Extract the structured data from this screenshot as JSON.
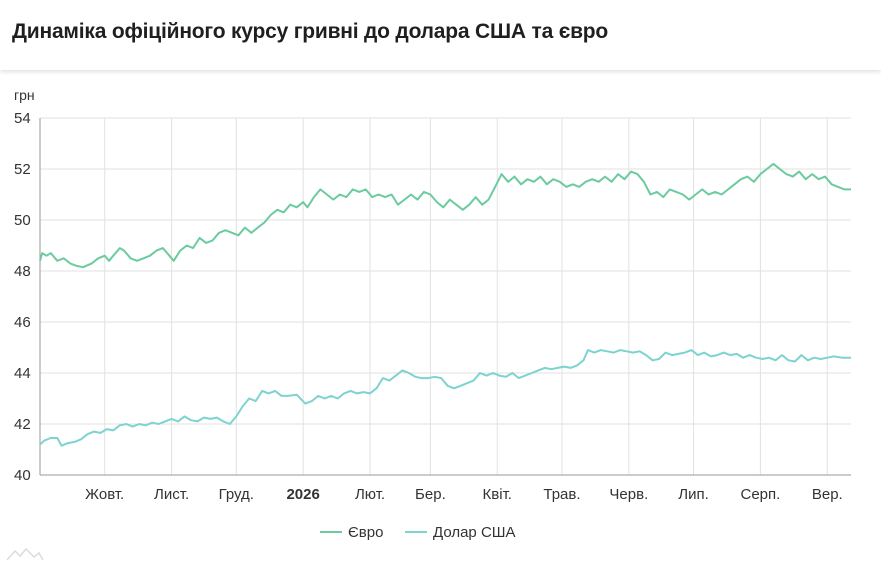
{
  "title": "Динаміка офіційного курсу гривні до долара США та євро",
  "colors": {
    "euro": "#6ccb9e",
    "usd": "#7dd3cf",
    "grid": "#e2e2e2",
    "axis": "#999999"
  },
  "chart_data": {
    "type": "line",
    "title": "Динаміка офіційного курсу гривні до долара США та євро",
    "ylabel": "грн",
    "ylim": [
      40,
      54
    ],
    "yticks": [
      "40",
      "42",
      "44",
      "46",
      "48",
      "50",
      "52",
      "54"
    ],
    "xlim": [
      "2025-09-01",
      "2026-09-12"
    ],
    "grid": true,
    "legend_position": "bottom",
    "x_ticks": [
      {
        "label": "Жовт.",
        "date": "2025-10-01",
        "bold": false
      },
      {
        "label": "Лист.",
        "date": "2025-11-01",
        "bold": false
      },
      {
        "label": "Груд.",
        "date": "2025-12-01",
        "bold": false
      },
      {
        "label": "2026",
        "date": "2026-01-01",
        "bold": true
      },
      {
        "label": "Лют.",
        "date": "2026-02-01",
        "bold": false
      },
      {
        "label": "Бер.",
        "date": "2026-03-01",
        "bold": false
      },
      {
        "label": "Квіт.",
        "date": "2026-04-01",
        "bold": false
      },
      {
        "label": "Трав.",
        "date": "2026-05-01",
        "bold": false
      },
      {
        "label": "Черв.",
        "date": "2026-06-01",
        "bold": false
      },
      {
        "label": "Лип.",
        "date": "2026-07-01",
        "bold": false
      },
      {
        "label": "Серп.",
        "date": "2026-08-01",
        "bold": false
      },
      {
        "label": "Вер.",
        "date": "2026-09-01",
        "bold": false
      }
    ],
    "series": [
      {
        "name": "Євро",
        "color": "#6ccb9e",
        "points": [
          [
            "2025-09-01",
            48.4
          ],
          [
            "2025-09-02",
            48.7
          ],
          [
            "2025-09-04",
            48.6
          ],
          [
            "2025-09-06",
            48.7
          ],
          [
            "2025-09-09",
            48.4
          ],
          [
            "2025-09-12",
            48.5
          ],
          [
            "2025-09-15",
            48.3
          ],
          [
            "2025-09-18",
            48.2
          ],
          [
            "2025-09-21",
            48.15
          ],
          [
            "2025-09-25",
            48.3
          ],
          [
            "2025-09-28",
            48.5
          ],
          [
            "2025-10-01",
            48.6
          ],
          [
            "2025-10-03",
            48.4
          ],
          [
            "2025-10-05",
            48.6
          ],
          [
            "2025-10-08",
            48.9
          ],
          [
            "2025-10-10",
            48.8
          ],
          [
            "2025-10-13",
            48.5
          ],
          [
            "2025-10-16",
            48.4
          ],
          [
            "2025-10-19",
            48.5
          ],
          [
            "2025-10-22",
            48.6
          ],
          [
            "2025-10-25",
            48.8
          ],
          [
            "2025-10-28",
            48.9
          ],
          [
            "2025-10-31",
            48.6
          ],
          [
            "2025-11-02",
            48.4
          ],
          [
            "2025-11-05",
            48.8
          ],
          [
            "2025-11-08",
            49.0
          ],
          [
            "2025-11-11",
            48.9
          ],
          [
            "2025-11-14",
            49.3
          ],
          [
            "2025-11-17",
            49.1
          ],
          [
            "2025-11-20",
            49.2
          ],
          [
            "2025-11-23",
            49.5
          ],
          [
            "2025-11-26",
            49.6
          ],
          [
            "2025-11-29",
            49.5
          ],
          [
            "2025-12-02",
            49.4
          ],
          [
            "2025-12-05",
            49.7
          ],
          [
            "2025-12-08",
            49.5
          ],
          [
            "2025-12-11",
            49.7
          ],
          [
            "2025-12-14",
            49.9
          ],
          [
            "2025-12-17",
            50.2
          ],
          [
            "2025-12-20",
            50.4
          ],
          [
            "2025-12-23",
            50.3
          ],
          [
            "2025-12-26",
            50.6
          ],
          [
            "2025-12-29",
            50.5
          ],
          [
            "2026-01-01",
            50.7
          ],
          [
            "2026-01-03",
            50.5
          ],
          [
            "2026-01-06",
            50.9
          ],
          [
            "2026-01-09",
            51.2
          ],
          [
            "2026-01-12",
            51.0
          ],
          [
            "2026-01-15",
            50.8
          ],
          [
            "2026-01-18",
            51.0
          ],
          [
            "2026-01-21",
            50.9
          ],
          [
            "2026-01-24",
            51.2
          ],
          [
            "2026-01-27",
            51.1
          ],
          [
            "2026-01-30",
            51.2
          ],
          [
            "2026-02-02",
            50.9
          ],
          [
            "2026-02-05",
            51.0
          ],
          [
            "2026-02-08",
            50.9
          ],
          [
            "2026-02-11",
            51.0
          ],
          [
            "2026-02-14",
            50.6
          ],
          [
            "2026-02-17",
            50.8
          ],
          [
            "2026-02-20",
            51.0
          ],
          [
            "2026-02-23",
            50.8
          ],
          [
            "2026-02-26",
            51.1
          ],
          [
            "2026-03-01",
            51.0
          ],
          [
            "2026-03-04",
            50.7
          ],
          [
            "2026-03-07",
            50.5
          ],
          [
            "2026-03-10",
            50.8
          ],
          [
            "2026-03-13",
            50.6
          ],
          [
            "2026-03-16",
            50.4
          ],
          [
            "2026-03-19",
            50.6
          ],
          [
            "2026-03-22",
            50.9
          ],
          [
            "2026-03-25",
            50.6
          ],
          [
            "2026-03-28",
            50.8
          ],
          [
            "2026-03-31",
            51.3
          ],
          [
            "2026-04-03",
            51.8
          ],
          [
            "2026-04-06",
            51.5
          ],
          [
            "2026-04-09",
            51.7
          ],
          [
            "2026-04-12",
            51.4
          ],
          [
            "2026-04-15",
            51.6
          ],
          [
            "2026-04-18",
            51.5
          ],
          [
            "2026-04-21",
            51.7
          ],
          [
            "2026-04-24",
            51.4
          ],
          [
            "2026-04-27",
            51.6
          ],
          [
            "2026-04-30",
            51.5
          ],
          [
            "2026-05-03",
            51.3
          ],
          [
            "2026-05-06",
            51.4
          ],
          [
            "2026-05-09",
            51.3
          ],
          [
            "2026-05-12",
            51.5
          ],
          [
            "2026-05-15",
            51.6
          ],
          [
            "2026-05-18",
            51.5
          ],
          [
            "2026-05-21",
            51.7
          ],
          [
            "2026-05-24",
            51.5
          ],
          [
            "2026-05-27",
            51.8
          ],
          [
            "2026-05-30",
            51.6
          ],
          [
            "2026-06-02",
            51.9
          ],
          [
            "2026-06-05",
            51.8
          ],
          [
            "2026-06-08",
            51.5
          ],
          [
            "2026-06-11",
            51.0
          ],
          [
            "2026-06-14",
            51.1
          ],
          [
            "2026-06-17",
            50.9
          ],
          [
            "2026-06-20",
            51.2
          ],
          [
            "2026-06-23",
            51.1
          ],
          [
            "2026-06-26",
            51.0
          ],
          [
            "2026-06-29",
            50.8
          ],
          [
            "2026-07-02",
            51.0
          ],
          [
            "2026-07-05",
            51.2
          ],
          [
            "2026-07-08",
            51.0
          ],
          [
            "2026-07-11",
            51.1
          ],
          [
            "2026-07-14",
            51.0
          ],
          [
            "2026-07-17",
            51.2
          ],
          [
            "2026-07-20",
            51.4
          ],
          [
            "2026-07-23",
            51.6
          ],
          [
            "2026-07-26",
            51.7
          ],
          [
            "2026-07-29",
            51.5
          ],
          [
            "2026-08-01",
            51.8
          ],
          [
            "2026-08-04",
            52.0
          ],
          [
            "2026-08-07",
            52.2
          ],
          [
            "2026-08-10",
            52.0
          ],
          [
            "2026-08-13",
            51.8
          ],
          [
            "2026-08-16",
            51.7
          ],
          [
            "2026-08-19",
            51.9
          ],
          [
            "2026-08-22",
            51.6
          ],
          [
            "2026-08-25",
            51.8
          ],
          [
            "2026-08-28",
            51.6
          ],
          [
            "2026-08-31",
            51.7
          ],
          [
            "2026-09-03",
            51.4
          ],
          [
            "2026-09-06",
            51.3
          ],
          [
            "2026-09-09",
            51.2
          ],
          [
            "2026-09-12",
            51.2
          ]
        ]
      },
      {
        "name": "Долар США",
        "color": "#7dd3cf",
        "points": [
          [
            "2025-09-01",
            41.2
          ],
          [
            "2025-09-03",
            41.35
          ],
          [
            "2025-09-06",
            41.45
          ],
          [
            "2025-09-09",
            41.45
          ],
          [
            "2025-09-11",
            41.15
          ],
          [
            "2025-09-14",
            41.25
          ],
          [
            "2025-09-17",
            41.3
          ],
          [
            "2025-09-20",
            41.4
          ],
          [
            "2025-09-23",
            41.6
          ],
          [
            "2025-09-26",
            41.7
          ],
          [
            "2025-09-29",
            41.65
          ],
          [
            "2025-10-02",
            41.8
          ],
          [
            "2025-10-05",
            41.75
          ],
          [
            "2025-10-08",
            41.95
          ],
          [
            "2025-10-11",
            42.0
          ],
          [
            "2025-10-14",
            41.9
          ],
          [
            "2025-10-17",
            42.0
          ],
          [
            "2025-10-20",
            41.95
          ],
          [
            "2025-10-23",
            42.05
          ],
          [
            "2025-10-26",
            42.0
          ],
          [
            "2025-10-29",
            42.1
          ],
          [
            "2025-11-01",
            42.2
          ],
          [
            "2025-11-04",
            42.1
          ],
          [
            "2025-11-07",
            42.3
          ],
          [
            "2025-11-10",
            42.15
          ],
          [
            "2025-11-13",
            42.1
          ],
          [
            "2025-11-16",
            42.25
          ],
          [
            "2025-11-19",
            42.2
          ],
          [
            "2025-11-22",
            42.25
          ],
          [
            "2025-11-25",
            42.1
          ],
          [
            "2025-11-28",
            42.0
          ],
          [
            "2025-12-01",
            42.3
          ],
          [
            "2025-12-04",
            42.7
          ],
          [
            "2025-12-07",
            43.0
          ],
          [
            "2025-12-10",
            42.9
          ],
          [
            "2025-12-13",
            43.3
          ],
          [
            "2025-12-16",
            43.2
          ],
          [
            "2025-12-19",
            43.3
          ],
          [
            "2025-12-22",
            43.1
          ],
          [
            "2025-12-25",
            43.1
          ],
          [
            "2025-12-29",
            43.15
          ],
          [
            "2026-01-02",
            42.8
          ],
          [
            "2026-01-05",
            42.9
          ],
          [
            "2026-01-08",
            43.1
          ],
          [
            "2026-01-11",
            43.0
          ],
          [
            "2026-01-14",
            43.1
          ],
          [
            "2026-01-17",
            43.0
          ],
          [
            "2026-01-20",
            43.2
          ],
          [
            "2026-01-23",
            43.3
          ],
          [
            "2026-01-26",
            43.2
          ],
          [
            "2026-01-29",
            43.25
          ],
          [
            "2026-02-01",
            43.2
          ],
          [
            "2026-02-04",
            43.4
          ],
          [
            "2026-02-07",
            43.8
          ],
          [
            "2026-02-10",
            43.7
          ],
          [
            "2026-02-13",
            43.9
          ],
          [
            "2026-02-16",
            44.1
          ],
          [
            "2026-02-19",
            44.0
          ],
          [
            "2026-02-22",
            43.85
          ],
          [
            "2026-02-25",
            43.8
          ],
          [
            "2026-02-28",
            43.8
          ],
          [
            "2026-03-03",
            43.85
          ],
          [
            "2026-03-06",
            43.8
          ],
          [
            "2026-03-09",
            43.5
          ],
          [
            "2026-03-12",
            43.4
          ],
          [
            "2026-03-15",
            43.5
          ],
          [
            "2026-03-18",
            43.6
          ],
          [
            "2026-03-21",
            43.7
          ],
          [
            "2026-03-24",
            44.0
          ],
          [
            "2026-03-27",
            43.9
          ],
          [
            "2026-03-30",
            44.0
          ],
          [
            "2026-04-02",
            43.9
          ],
          [
            "2026-04-05",
            43.85
          ],
          [
            "2026-04-08",
            44.0
          ],
          [
            "2026-04-11",
            43.8
          ],
          [
            "2026-04-14",
            43.9
          ],
          [
            "2026-04-17",
            44.0
          ],
          [
            "2026-04-20",
            44.1
          ],
          [
            "2026-04-23",
            44.2
          ],
          [
            "2026-04-26",
            44.15
          ],
          [
            "2026-04-29",
            44.2
          ],
          [
            "2026-05-02",
            44.25
          ],
          [
            "2026-05-05",
            44.2
          ],
          [
            "2026-05-08",
            44.3
          ],
          [
            "2026-05-11",
            44.5
          ],
          [
            "2026-05-13",
            44.9
          ],
          [
            "2026-05-16",
            44.8
          ],
          [
            "2026-05-19",
            44.9
          ],
          [
            "2026-05-22",
            44.85
          ],
          [
            "2026-05-25",
            44.8
          ],
          [
            "2026-05-28",
            44.9
          ],
          [
            "2026-05-31",
            44.85
          ],
          [
            "2026-06-03",
            44.8
          ],
          [
            "2026-06-06",
            44.85
          ],
          [
            "2026-06-09",
            44.7
          ],
          [
            "2026-06-12",
            44.5
          ],
          [
            "2026-06-15",
            44.55
          ],
          [
            "2026-06-18",
            44.8
          ],
          [
            "2026-06-21",
            44.7
          ],
          [
            "2026-06-24",
            44.75
          ],
          [
            "2026-06-27",
            44.8
          ],
          [
            "2026-06-30",
            44.9
          ],
          [
            "2026-07-03",
            44.7
          ],
          [
            "2026-07-06",
            44.8
          ],
          [
            "2026-07-09",
            44.65
          ],
          [
            "2026-07-12",
            44.7
          ],
          [
            "2026-07-15",
            44.8
          ],
          [
            "2026-07-18",
            44.7
          ],
          [
            "2026-07-21",
            44.75
          ],
          [
            "2026-07-24",
            44.6
          ],
          [
            "2026-07-27",
            44.7
          ],
          [
            "2026-07-30",
            44.6
          ],
          [
            "2026-08-02",
            44.55
          ],
          [
            "2026-08-05",
            44.6
          ],
          [
            "2026-08-08",
            44.5
          ],
          [
            "2026-08-11",
            44.7
          ],
          [
            "2026-08-14",
            44.5
          ],
          [
            "2026-08-17",
            44.45
          ],
          [
            "2026-08-20",
            44.7
          ],
          [
            "2026-08-23",
            44.5
          ],
          [
            "2026-08-26",
            44.6
          ],
          [
            "2026-08-29",
            44.55
          ],
          [
            "2026-09-01",
            44.6
          ],
          [
            "2026-09-04",
            44.65
          ],
          [
            "2026-09-08",
            44.6
          ],
          [
            "2026-09-12",
            44.6
          ]
        ]
      }
    ]
  }
}
